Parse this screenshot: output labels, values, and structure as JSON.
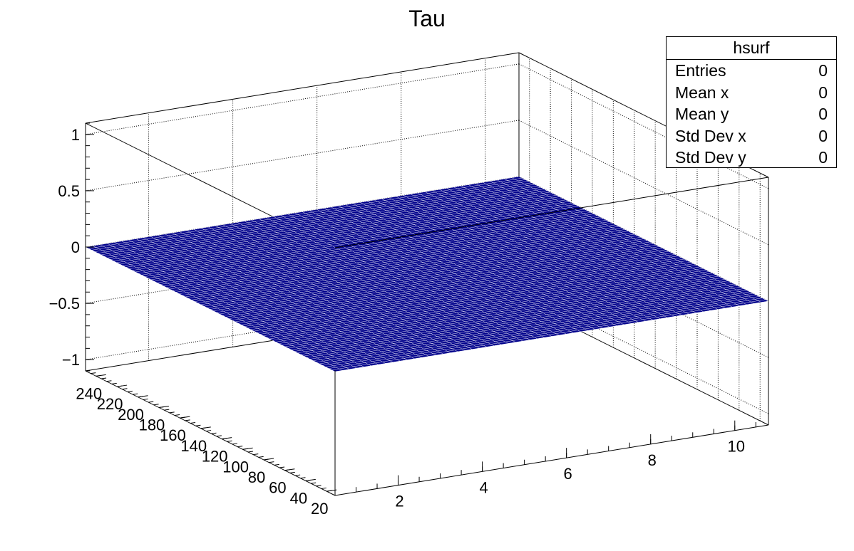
{
  "chart_data": {
    "type": "surface",
    "title": "Tau",
    "x_ticks": [
      2,
      4,
      6,
      8,
      10
    ],
    "y_ticks": [
      20,
      40,
      60,
      80,
      100,
      120,
      140,
      160,
      180,
      200,
      220,
      240
    ],
    "z_ticks": [
      {
        "value": 1,
        "label": "1"
      },
      {
        "value": 0.5,
        "label": "0.5"
      },
      {
        "value": 0,
        "label": "0"
      },
      {
        "value": -0.5,
        "label": "−0.5"
      },
      {
        "value": -1,
        "label": "−1"
      }
    ],
    "xlim": [
      0.5,
      10.8
    ],
    "ylim": [
      12,
      250
    ],
    "zlim": [
      -1.1,
      1.1
    ],
    "surface_z": 0,
    "surface_color": "#00008b",
    "grid": true
  },
  "stats_box": {
    "name": "hsurf",
    "rows": [
      {
        "label": "Entries",
        "value": "0"
      },
      {
        "label": "Mean x",
        "value": "0"
      },
      {
        "label": "Mean y",
        "value": "0"
      },
      {
        "label": "Std Dev x",
        "value": "0"
      },
      {
        "label": "Std Dev y",
        "value": "0"
      }
    ]
  }
}
